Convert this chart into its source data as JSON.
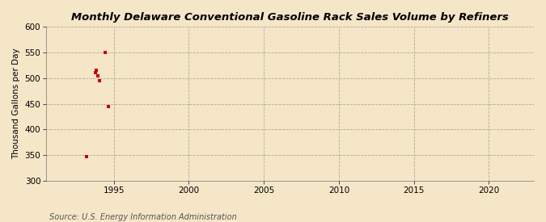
{
  "title": "Monthly Delaware Conventional Gasoline Rack Sales Volume by Refiners",
  "ylabel": "Thousand Gallons per Day",
  "source": "Source: U.S. Energy Information Administration",
  "background_color": "#f5e6c8",
  "plot_bg_color": "#f5e6c8",
  "data_points": [
    [
      1993.2,
      347
    ],
    [
      1993.75,
      510
    ],
    [
      1993.85,
      515
    ],
    [
      1993.95,
      505
    ],
    [
      1994.05,
      495
    ],
    [
      1994.4,
      550
    ],
    [
      1994.65,
      445
    ]
  ],
  "marker_color": "#cc0000",
  "marker_size": 3.5,
  "xlim": [
    1990.5,
    2023
  ],
  "ylim": [
    300,
    600
  ],
  "yticks": [
    300,
    350,
    400,
    450,
    500,
    550,
    600
  ],
  "xticks": [
    1995,
    2000,
    2005,
    2010,
    2015,
    2020
  ],
  "grid_color": "#b0a898",
  "title_fontsize": 9.5,
  "axis_fontsize": 7.5,
  "source_fontsize": 7.0
}
